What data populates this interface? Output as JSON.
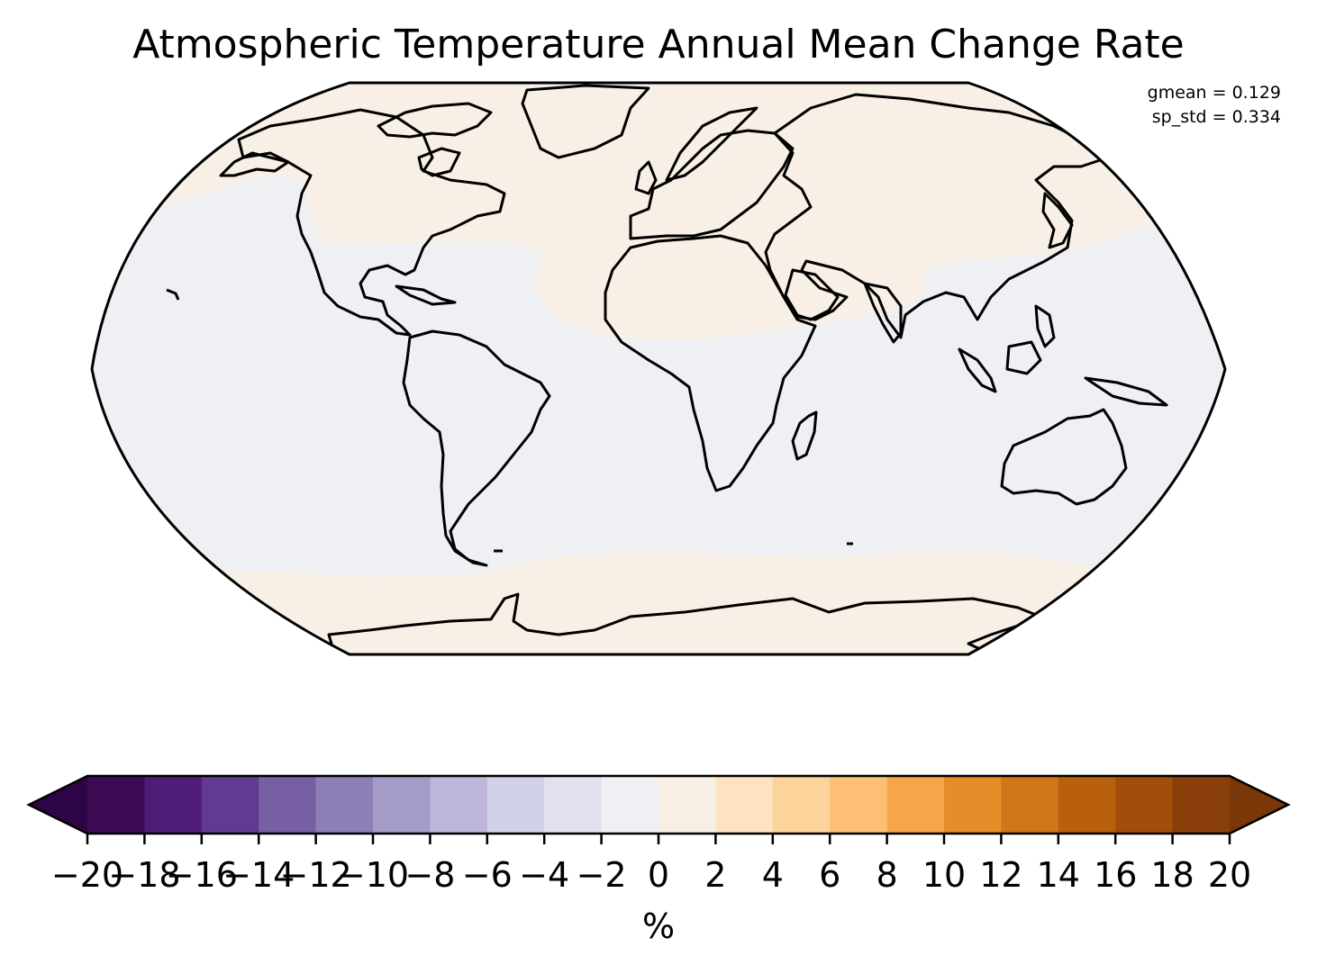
{
  "title": "Atmospheric Temperature Annual Mean Change Rate",
  "stats": {
    "gmean": "gmean = 0.129",
    "sp_std": "sp_std = 0.334"
  },
  "map": {
    "projection": "Robinson",
    "ocean_band_value_range": [
      -2,
      0
    ],
    "land_high_latitude_value_range": [
      0,
      2
    ],
    "colors": {
      "neg_small": "#eef0f4",
      "pos_small": "#f8f0e6",
      "coast": "#000000"
    }
  },
  "colorbar": {
    "label": "%",
    "extend": "both",
    "levels": [
      -20,
      -18,
      -16,
      -14,
      -12,
      -10,
      -8,
      -6,
      -4,
      -2,
      0,
      2,
      4,
      6,
      8,
      10,
      12,
      14,
      16,
      18,
      20
    ],
    "tick_labels": [
      "−20",
      "−18",
      "−16",
      "−14",
      "−12",
      "−10",
      "−8",
      "−6",
      "−4",
      "−2",
      "0",
      "2",
      "4",
      "6",
      "8",
      "10",
      "12",
      "14",
      "16",
      "18",
      "20"
    ],
    "colors": [
      "#3b0c53",
      "#4e1d78",
      "#633a92",
      "#765fa3",
      "#8e80b6",
      "#a59bc8",
      "#bdb6d9",
      "#d1d1e7",
      "#e1e1ef",
      "#eff0f4",
      "#f8f0e5",
      "#fde3c2",
      "#fdd39c",
      "#fcbf74",
      "#f5a64b",
      "#e68d29",
      "#d07518",
      "#b9600d",
      "#a24e0b",
      "#8a3f0b"
    ],
    "under_color": "#2d0445",
    "over_color": "#7a3808"
  },
  "chart_data": {
    "type": "heatmap",
    "title": "Atmospheric Temperature Annual Mean Change Rate",
    "annotations": [
      "gmean = 0.129",
      "sp_std = 0.334"
    ],
    "colorbar_label": "%",
    "colorbar_range": [
      -20,
      20
    ],
    "colorbar_step": 2,
    "regions": [
      {
        "name": "tropics and mid-latitude oceans (approx. 45S to 30N)",
        "value_bin": [
          -2,
          0
        ]
      },
      {
        "name": "northern mid/high latitudes, Africa north, Asia",
        "value_bin": [
          0,
          2
        ]
      },
      {
        "name": "southern high latitudes and Antarctica",
        "value_bin": [
          0,
          2
        ]
      }
    ]
  }
}
